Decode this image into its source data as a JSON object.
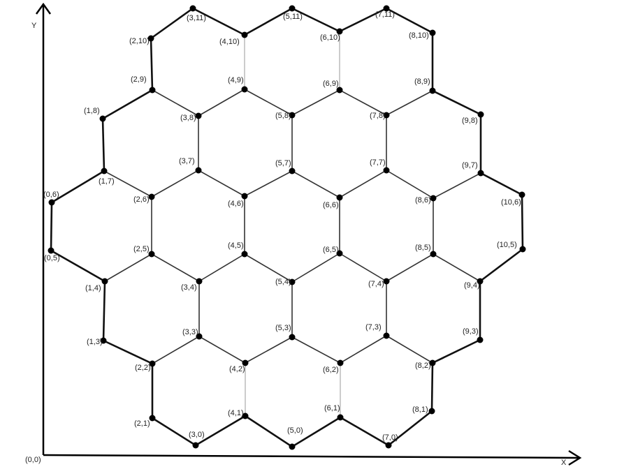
{
  "axes": {
    "x_label": "X",
    "y_label": "Y",
    "origin_label": "(0,0)"
  },
  "nodes": [
    {
      "id": "3,11",
      "label": "(3,11)"
    },
    {
      "id": "5,11",
      "label": "(5,11)"
    },
    {
      "id": "7,11",
      "label": "(7,11)"
    },
    {
      "id": "2,10",
      "label": "(2,10)"
    },
    {
      "id": "4,10",
      "label": "(4,10)"
    },
    {
      "id": "6,10",
      "label": "(6,10)"
    },
    {
      "id": "8,10",
      "label": "(8,10)"
    },
    {
      "id": "2,9",
      "label": "(2,9)"
    },
    {
      "id": "4,9",
      "label": "(4,9)"
    },
    {
      "id": "6,9",
      "label": "(6,9)"
    },
    {
      "id": "8,9",
      "label": "(8,9)"
    },
    {
      "id": "1,8",
      "label": "(1,8)"
    },
    {
      "id": "3,8",
      "label": "(3,8)"
    },
    {
      "id": "5,8",
      "label": "(5,8)"
    },
    {
      "id": "7,8",
      "label": "(7,8)"
    },
    {
      "id": "9,8",
      "label": "(9,8)"
    },
    {
      "id": "1,7",
      "label": "(1,7)"
    },
    {
      "id": "3,7",
      "label": "(3,7)"
    },
    {
      "id": "5,7",
      "label": "(5,7)"
    },
    {
      "id": "7,7",
      "label": "(7,7)"
    },
    {
      "id": "9,7",
      "label": "(9,7)"
    },
    {
      "id": "0,6",
      "label": "(0,6)"
    },
    {
      "id": "2,6",
      "label": "(2,6)"
    },
    {
      "id": "4,6",
      "label": "(4,6)"
    },
    {
      "id": "6,6",
      "label": "(6,6)"
    },
    {
      "id": "8,6",
      "label": "(8,6)"
    },
    {
      "id": "10,6",
      "label": "(10,6)"
    },
    {
      "id": "0,5",
      "label": "(0,5)"
    },
    {
      "id": "2,5",
      "label": "(2,5)"
    },
    {
      "id": "4,5",
      "label": "(4,5)"
    },
    {
      "id": "6,5",
      "label": "(6,5)"
    },
    {
      "id": "8,5",
      "label": "(8,5)"
    },
    {
      "id": "10,5",
      "label": "(10,5)"
    },
    {
      "id": "1,4",
      "label": "(1,4)"
    },
    {
      "id": "3,4",
      "label": "(3,4)"
    },
    {
      "id": "5,4",
      "label": "(5,4)"
    },
    {
      "id": "7,4",
      "label": "(7,4)"
    },
    {
      "id": "9,4",
      "label": "(9,4)"
    },
    {
      "id": "1,3",
      "label": "(1,3)"
    },
    {
      "id": "3,3",
      "label": "(3,3)"
    },
    {
      "id": "5,3",
      "label": "(5,3)"
    },
    {
      "id": "7,3",
      "label": "(7,3)"
    },
    {
      "id": "9,3",
      "label": "(9,3)"
    },
    {
      "id": "2,2",
      "label": "(2,2)"
    },
    {
      "id": "4,2",
      "label": "(4,2)"
    },
    {
      "id": "6,2",
      "label": "(6,2)"
    },
    {
      "id": "8,2",
      "label": "(8,2)"
    },
    {
      "id": "2,1",
      "label": "(2,1)"
    },
    {
      "id": "4,1",
      "label": "(4,1)"
    },
    {
      "id": "6,1",
      "label": "(6,1)"
    },
    {
      "id": "8,1",
      "label": "(8,1)"
    },
    {
      "id": "3,0",
      "label": "(3,0)"
    },
    {
      "id": "5,0",
      "label": "(5,0)"
    },
    {
      "id": "7,0",
      "label": "(7,0)"
    }
  ],
  "edges": [
    [
      "2,10",
      "3,11",
      "outer"
    ],
    [
      "3,11",
      "4,10",
      "outer"
    ],
    [
      "4,10",
      "5,11",
      "outer"
    ],
    [
      "5,11",
      "6,10",
      "outer"
    ],
    [
      "6,10",
      "7,11",
      "outer"
    ],
    [
      "7,11",
      "8,10",
      "outer"
    ],
    [
      "2,10",
      "2,9",
      "outer"
    ],
    [
      "4,10",
      "4,9",
      "thin"
    ],
    [
      "6,10",
      "6,9",
      "thin"
    ],
    [
      "8,10",
      "8,9",
      "outer"
    ],
    [
      "2,9",
      "1,8",
      "outer"
    ],
    [
      "2,9",
      "3,8",
      "inner"
    ],
    [
      "3,8",
      "4,9",
      "inner"
    ],
    [
      "4,9",
      "5,8",
      "inner"
    ],
    [
      "5,8",
      "6,9",
      "inner"
    ],
    [
      "6,9",
      "7,8",
      "inner"
    ],
    [
      "7,8",
      "8,9",
      "inner"
    ],
    [
      "8,9",
      "9,8",
      "outer"
    ],
    [
      "1,8",
      "1,7",
      "outer"
    ],
    [
      "3,8",
      "3,7",
      "inner"
    ],
    [
      "5,8",
      "5,7",
      "inner"
    ],
    [
      "7,8",
      "7,7",
      "inner"
    ],
    [
      "9,8",
      "9,7",
      "outer"
    ],
    [
      "1,7",
      "0,6",
      "outer"
    ],
    [
      "1,7",
      "2,6",
      "inner"
    ],
    [
      "2,6",
      "3,7",
      "inner"
    ],
    [
      "3,7",
      "4,6",
      "inner"
    ],
    [
      "4,6",
      "5,7",
      "inner"
    ],
    [
      "5,7",
      "6,6",
      "inner"
    ],
    [
      "6,6",
      "7,7",
      "inner"
    ],
    [
      "7,7",
      "8,6",
      "inner"
    ],
    [
      "8,6",
      "9,7",
      "inner"
    ],
    [
      "9,7",
      "10,6",
      "outer"
    ],
    [
      "0,6",
      "0,5",
      "outer"
    ],
    [
      "2,6",
      "2,5",
      "inner"
    ],
    [
      "4,6",
      "4,5",
      "inner"
    ],
    [
      "6,6",
      "6,5",
      "inner"
    ],
    [
      "8,6",
      "8,5",
      "inner"
    ],
    [
      "10,6",
      "10,5",
      "outer"
    ],
    [
      "0,5",
      "1,4",
      "outer"
    ],
    [
      "1,4",
      "2,5",
      "inner"
    ],
    [
      "2,5",
      "3,4",
      "inner"
    ],
    [
      "3,4",
      "4,5",
      "inner"
    ],
    [
      "4,5",
      "5,4",
      "inner"
    ],
    [
      "5,4",
      "6,5",
      "inner"
    ],
    [
      "6,5",
      "7,4",
      "inner"
    ],
    [
      "7,4",
      "8,5",
      "inner"
    ],
    [
      "8,5",
      "9,4",
      "inner"
    ],
    [
      "9,4",
      "10,5",
      "outer"
    ],
    [
      "1,4",
      "1,3",
      "outer"
    ],
    [
      "3,4",
      "3,3",
      "inner"
    ],
    [
      "5,4",
      "5,3",
      "inner"
    ],
    [
      "7,4",
      "7,3",
      "inner"
    ],
    [
      "9,4",
      "9,3",
      "outer"
    ],
    [
      "1,3",
      "2,2",
      "outer"
    ],
    [
      "2,2",
      "3,3",
      "inner"
    ],
    [
      "3,3",
      "4,2",
      "inner"
    ],
    [
      "4,2",
      "5,3",
      "inner"
    ],
    [
      "5,3",
      "6,2",
      "inner"
    ],
    [
      "6,2",
      "7,3",
      "inner"
    ],
    [
      "7,3",
      "8,2",
      "inner"
    ],
    [
      "8,2",
      "9,3",
      "outer"
    ],
    [
      "2,2",
      "2,1",
      "outer"
    ],
    [
      "4,2",
      "4,1",
      "thin"
    ],
    [
      "6,2",
      "6,1",
      "thin"
    ],
    [
      "8,2",
      "8,1",
      "outer"
    ],
    [
      "2,1",
      "3,0",
      "outer"
    ],
    [
      "3,0",
      "4,1",
      "outer"
    ],
    [
      "4,1",
      "5,0",
      "outer"
    ],
    [
      "5,0",
      "6,1",
      "outer"
    ],
    [
      "6,1",
      "7,0",
      "outer"
    ],
    [
      "7,0",
      "8,1",
      "outer"
    ]
  ]
}
